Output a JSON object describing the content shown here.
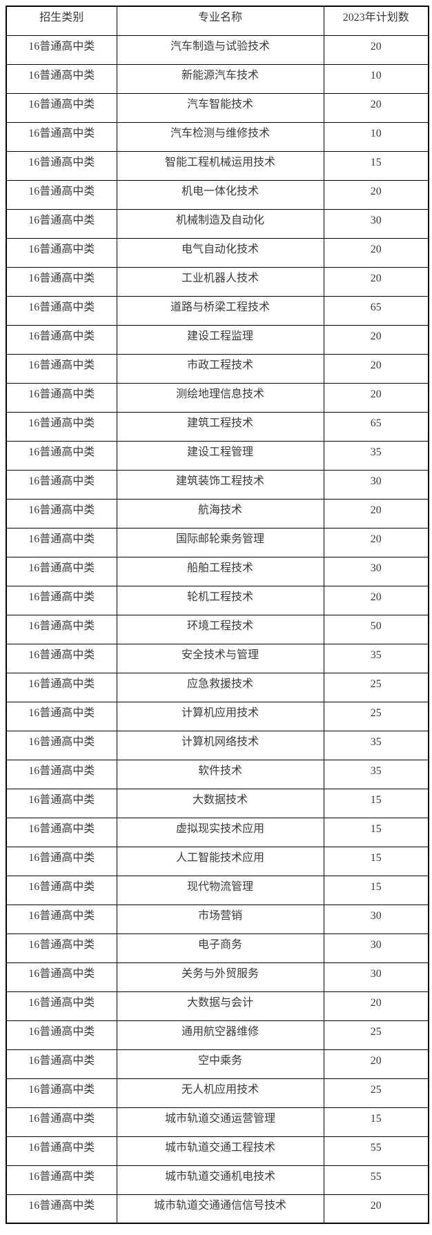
{
  "table": {
    "columns": [
      "招生类别",
      "专业名称",
      "2023年计划数"
    ],
    "rows": [
      {
        "category": "16普通高中类",
        "major": "汽车制造与试验技术",
        "plan": "20"
      },
      {
        "category": "16普通高中类",
        "major": "新能源汽车技术",
        "plan": "10"
      },
      {
        "category": "16普通高中类",
        "major": "汽车智能技术",
        "plan": "20"
      },
      {
        "category": "16普通高中类",
        "major": "汽车检测与维修技术",
        "plan": "10"
      },
      {
        "category": "16普通高中类",
        "major": "智能工程机械运用技术",
        "plan": "15"
      },
      {
        "category": "16普通高中类",
        "major": "机电一体化技术",
        "plan": "20"
      },
      {
        "category": "16普通高中类",
        "major": "机械制造及自动化",
        "plan": "30"
      },
      {
        "category": "16普通高中类",
        "major": "电气自动化技术",
        "plan": "20"
      },
      {
        "category": "16普通高中类",
        "major": "工业机器人技术",
        "plan": "20"
      },
      {
        "category": "16普通高中类",
        "major": "道路与桥梁工程技术",
        "plan": "65"
      },
      {
        "category": "16普通高中类",
        "major": "建设工程监理",
        "plan": "20"
      },
      {
        "category": "16普通高中类",
        "major": "市政工程技术",
        "plan": "20"
      },
      {
        "category": "16普通高中类",
        "major": "测绘地理信息技术",
        "plan": "20"
      },
      {
        "category": "16普通高中类",
        "major": "建筑工程技术",
        "plan": "65"
      },
      {
        "category": "16普通高中类",
        "major": "建设工程管理",
        "plan": "35"
      },
      {
        "category": "16普通高中类",
        "major": "建筑装饰工程技术",
        "plan": "30"
      },
      {
        "category": "16普通高中类",
        "major": "航海技术",
        "plan": "20"
      },
      {
        "category": "16普通高中类",
        "major": "国际邮轮乘务管理",
        "plan": "20"
      },
      {
        "category": "16普通高中类",
        "major": "船舶工程技术",
        "plan": "30"
      },
      {
        "category": "16普通高中类",
        "major": "轮机工程技术",
        "plan": "20"
      },
      {
        "category": "16普通高中类",
        "major": "环境工程技术",
        "plan": "50"
      },
      {
        "category": "16普通高中类",
        "major": "安全技术与管理",
        "plan": "35"
      },
      {
        "category": "16普通高中类",
        "major": "应急救援技术",
        "plan": "25"
      },
      {
        "category": "16普通高中类",
        "major": "计算机应用技术",
        "plan": "25"
      },
      {
        "category": "16普通高中类",
        "major": "计算机网络技术",
        "plan": "35"
      },
      {
        "category": "16普通高中类",
        "major": "软件技术",
        "plan": "35"
      },
      {
        "category": "16普通高中类",
        "major": "大数据技术",
        "plan": "15"
      },
      {
        "category": "16普通高中类",
        "major": "虚拟现实技术应用",
        "plan": "15"
      },
      {
        "category": "16普通高中类",
        "major": "人工智能技术应用",
        "plan": "15"
      },
      {
        "category": "16普通高中类",
        "major": "现代物流管理",
        "plan": "15"
      },
      {
        "category": "16普通高中类",
        "major": "市场营销",
        "plan": "30"
      },
      {
        "category": "16普通高中类",
        "major": "电子商务",
        "plan": "30"
      },
      {
        "category": "16普通高中类",
        "major": "关务与外贸服务",
        "plan": "30"
      },
      {
        "category": "16普通高中类",
        "major": "大数据与会计",
        "plan": "20"
      },
      {
        "category": "16普通高中类",
        "major": "通用航空器维修",
        "plan": "25"
      },
      {
        "category": "16普通高中类",
        "major": "空中乘务",
        "plan": "20"
      },
      {
        "category": "16普通高中类",
        "major": "无人机应用技术",
        "plan": "25"
      },
      {
        "category": "16普通高中类",
        "major": "城市轨道交通运营管理",
        "plan": "15"
      },
      {
        "category": "16普通高中类",
        "major": "城市轨道交通工程技术",
        "plan": "55"
      },
      {
        "category": "16普通高中类",
        "major": "城市轨道交通机电技术",
        "plan": "55"
      },
      {
        "category": "16普通高中类",
        "major": "城市轨道交通通信信号技术",
        "plan": "20"
      }
    ]
  }
}
